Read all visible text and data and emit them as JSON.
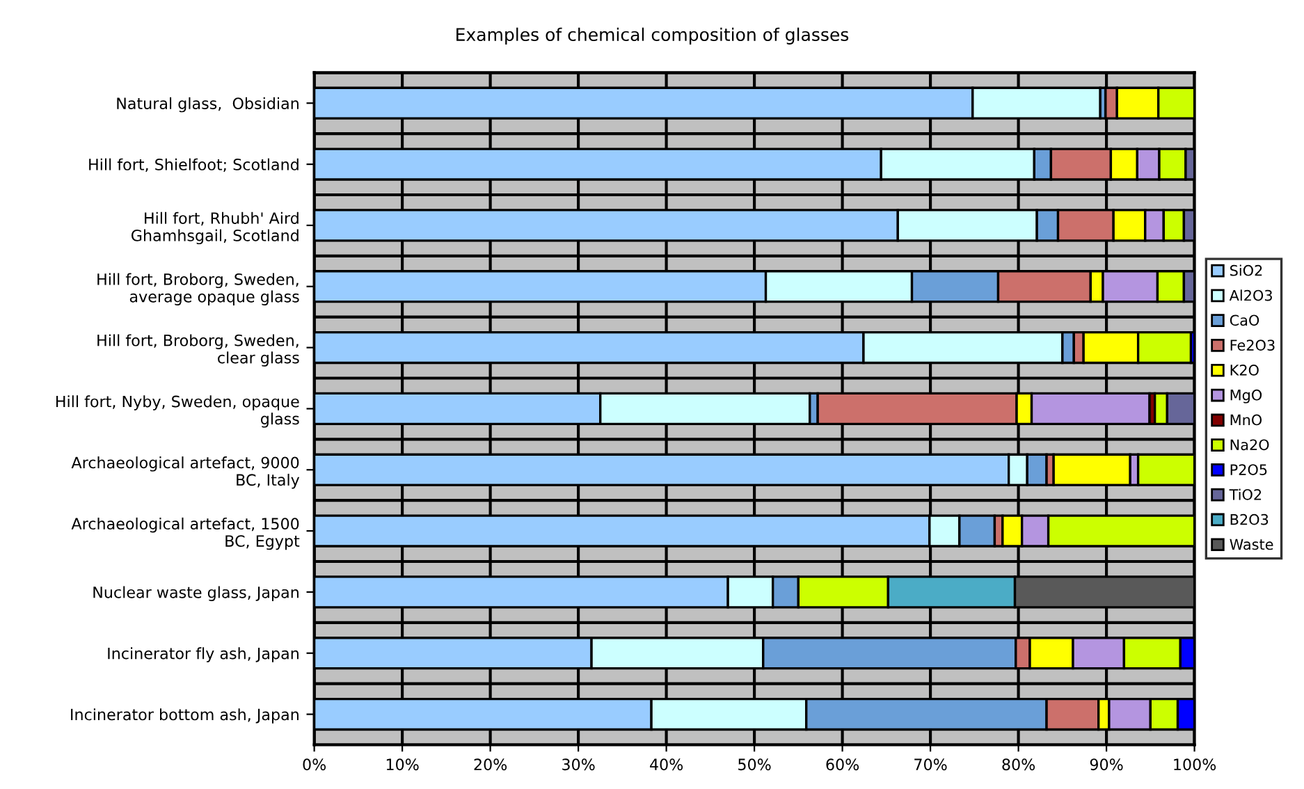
{
  "chart_data": {
    "type": "bar",
    "orientation": "horizontal",
    "stacked": true,
    "title": "Examples of chemical composition of glasses",
    "categories": [
      "Natural glass,  Obsidian",
      "Hill fort, Shielfoot; Scotland",
      "Hill fort, Rhubh' Aird\nGhamhsgail, Scotland",
      "Hill fort, Broborg, Sweden,\naverage opaque glass",
      "Hill fort, Broborg, Sweden,\nclear glass",
      "Hill fort, Nyby, Sweden, opaque\nglass",
      "Archaeological artefact, 9000\nBC, Italy",
      "Archaeological artefact, 1500\nBC, Egypt",
      "Nuclear waste glass, Japan",
      "Incinerator fly ash, Japan",
      "Incinerator bottom ash, Japan"
    ],
    "series": [
      {
        "name": "SiO2",
        "color": "#99ccff",
        "values": [
          74.8,
          64.4,
          66.3,
          51.3,
          62.4,
          32.5,
          78.9,
          69.9,
          47.0,
          31.5,
          38.3
        ]
      },
      {
        "name": "Al2O3",
        "color": "#ccffff",
        "values": [
          14.5,
          17.4,
          15.8,
          16.6,
          22.6,
          23.8,
          2.1,
          3.4,
          5.1,
          19.5,
          17.6
        ]
      },
      {
        "name": "CaO",
        "color": "#6a9fd8",
        "values": [
          0.6,
          1.9,
          2.4,
          9.8,
          1.3,
          0.9,
          2.2,
          4.0,
          2.9,
          28.7,
          27.3
        ]
      },
      {
        "name": "Fe2O3",
        "color": "#cc706b",
        "values": [
          1.3,
          6.8,
          6.3,
          10.5,
          1.1,
          22.6,
          0.8,
          0.9,
          null,
          1.6,
          5.9
        ]
      },
      {
        "name": "K2O",
        "color": "#ffff00",
        "values": [
          4.7,
          3.0,
          3.6,
          1.4,
          6.2,
          1.7,
          8.7,
          2.2,
          null,
          4.9,
          1.2
        ]
      },
      {
        "name": "MgO",
        "color": "#b495e0",
        "values": [
          null,
          2.5,
          2.1,
          6.2,
          null,
          13.4,
          0.9,
          3.0,
          null,
          5.8,
          4.7
        ]
      },
      {
        "name": "MnO",
        "color": "#800000",
        "values": [
          null,
          null,
          null,
          null,
          null,
          0.6,
          null,
          null,
          null,
          null,
          null
        ]
      },
      {
        "name": "Na2O",
        "color": "#ccff00",
        "values": [
          4.1,
          3.0,
          2.3,
          3.0,
          6.0,
          1.4,
          6.4,
          16.6,
          10.2,
          6.4,
          3.1
        ]
      },
      {
        "name": "P2O5",
        "color": "#0000ff",
        "values": [
          null,
          null,
          null,
          null,
          0.4,
          null,
          null,
          null,
          null,
          1.6,
          1.9
        ]
      },
      {
        "name": "TiO2",
        "color": "#666699",
        "values": [
          null,
          1.0,
          1.2,
          1.2,
          null,
          3.1,
          null,
          null,
          null,
          null,
          null
        ]
      },
      {
        "name": "B2O3",
        "color": "#4bacc6",
        "values": [
          null,
          null,
          null,
          null,
          null,
          null,
          null,
          null,
          14.4,
          null,
          null
        ]
      },
      {
        "name": "Waste",
        "color": "#595959",
        "values": [
          null,
          null,
          null,
          null,
          null,
          null,
          null,
          null,
          20.4,
          null,
          null
        ]
      }
    ],
    "xlim": [
      0,
      100
    ],
    "xticks": [
      {
        "value": 0,
        "label": "0%"
      },
      {
        "value": 10,
        "label": "10%"
      },
      {
        "value": 20,
        "label": "20%"
      },
      {
        "value": 30,
        "label": "30%"
      },
      {
        "value": 40,
        "label": "40%"
      },
      {
        "value": 50,
        "label": "50%"
      },
      {
        "value": 60,
        "label": "60%"
      },
      {
        "value": 70,
        "label": "70%"
      },
      {
        "value": 80,
        "label": "80%"
      },
      {
        "value": 90,
        "label": "90%"
      },
      {
        "value": 100,
        "label": "100%"
      }
    ],
    "grid": "x",
    "legend": "right"
  }
}
